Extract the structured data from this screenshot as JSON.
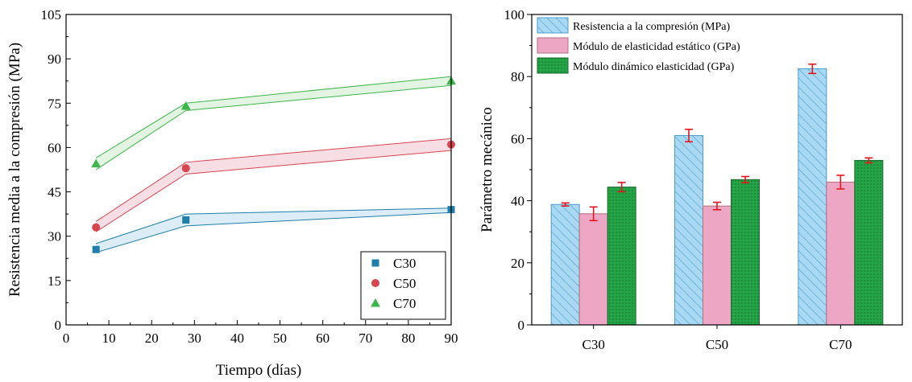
{
  "chart_data": [
    {
      "type": "line",
      "title": "",
      "xlabel": "Tiempo (días)",
      "ylabel": "Resistencia media a la compresión (MPa)",
      "xlim": [
        0,
        90
      ],
      "ylim": [
        0,
        105
      ],
      "xticks": [
        0,
        10,
        20,
        30,
        40,
        50,
        60,
        70,
        80,
        90
      ],
      "yticks": [
        0,
        15,
        30,
        45,
        60,
        75,
        90,
        105
      ],
      "legend": "bottom-right",
      "grid": false,
      "series": [
        {
          "name": "C30",
          "marker": "square",
          "color": "#1f7fa8",
          "band_fill": "#dcedf7",
          "x": [
            7,
            28,
            90
          ],
          "y": [
            25.5,
            35.5,
            39
          ],
          "band_lower": [
            24.5,
            33.5,
            38
          ],
          "band_upper": [
            27.5,
            37.5,
            39.5
          ]
        },
        {
          "name": "C50",
          "marker": "circle",
          "color": "#d64550",
          "band_fill": "#f7dde4",
          "x": [
            7,
            28,
            90
          ],
          "y": [
            33,
            53,
            61
          ],
          "band_lower": [
            31.5,
            51,
            59
          ],
          "band_upper": [
            35,
            55,
            63
          ]
        },
        {
          "name": "C70",
          "marker": "triangle",
          "color": "#3cb54a",
          "band_fill": "#e3f4e3",
          "x": [
            7,
            28,
            90
          ],
          "y": [
            54.5,
            74,
            82.5
          ],
          "band_lower": [
            52.5,
            72.5,
            81
          ],
          "band_upper": [
            56.5,
            75,
            84
          ]
        }
      ]
    },
    {
      "type": "bar",
      "title": "",
      "xlabel": "",
      "ylabel": "Parámetro mecánico",
      "categories": [
        "C30",
        "C50",
        "C70"
      ],
      "ylim": [
        0,
        100
      ],
      "yticks": [
        0,
        20,
        40,
        60,
        80,
        100
      ],
      "legend": "top-left",
      "grid": false,
      "error_color": "#e8141c",
      "series": [
        {
          "name": "Resistencia a la compresión (MPa)",
          "fill": "#a9d9f2",
          "stroke": "#4a9ccc",
          "pattern": "hatch",
          "values": [
            38.8,
            61,
            82.5
          ],
          "errors": [
            0.5,
            2,
            1.5
          ]
        },
        {
          "name": "Módulo de elasticidad estático (GPa)",
          "fill": "#eda7c4",
          "stroke": "#b0707f",
          "pattern": "solid",
          "values": [
            35.8,
            38.3,
            46
          ],
          "errors": [
            2.2,
            1.2,
            2.2
          ]
        },
        {
          "name": "Módulo dinámico elasticidad (GPa)",
          "fill": "#22a447",
          "stroke": "#1c6b2c",
          "pattern": "dots",
          "values": [
            44.4,
            46.8,
            53
          ],
          "errors": [
            1.5,
            1,
            0.8
          ]
        }
      ]
    }
  ]
}
